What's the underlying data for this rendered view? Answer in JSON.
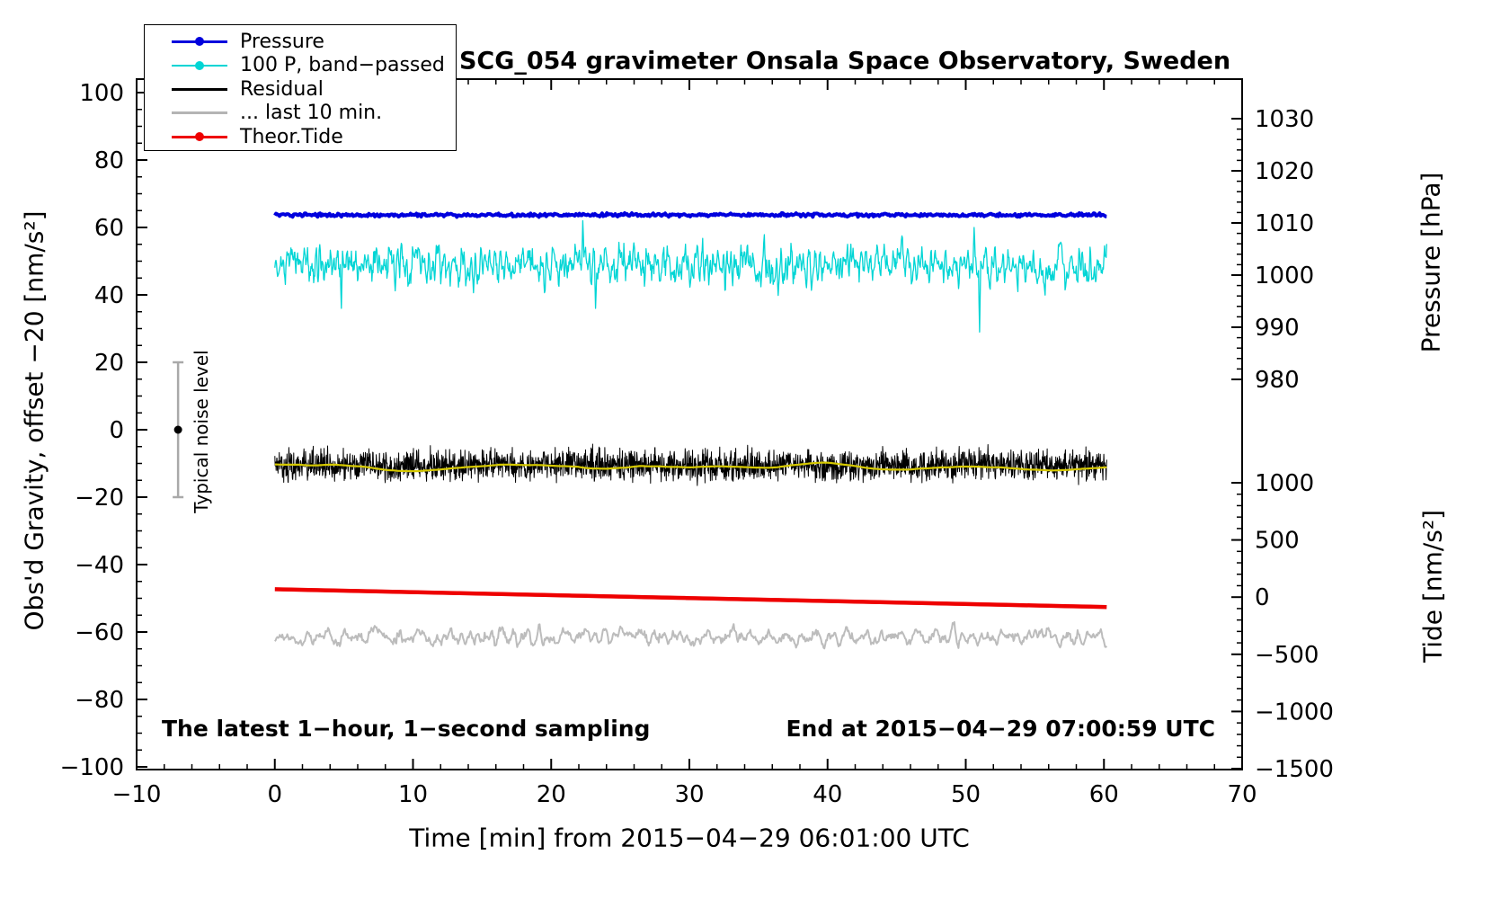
{
  "title": "SCG_054 gravimeter Onsala Space Observatory, Sweden",
  "legend": {
    "items": [
      {
        "label": "Pressure",
        "color": "#0000dd",
        "marker": "dot-line",
        "line_width": 2.5
      },
      {
        "label": "100 P, band−passed",
        "color": "#00d5d5",
        "marker": "dot-line",
        "line_width": 2.5
      },
      {
        "label": "Residual",
        "color": "#000000",
        "marker": "line",
        "line_width": 3.5
      },
      {
        "label": "... last 10 min.",
        "color": "#b4b4b4",
        "marker": "line",
        "line_width": 3
      },
      {
        "label": "Theor.Tide",
        "color": "#ee0000",
        "marker": "dot-line",
        "line_width": 2.5
      }
    ]
  },
  "annotations": {
    "noise_label": "Typical noise level",
    "sampling_note": "The latest 1−hour, 1−second sampling",
    "end_note": "End at 2015−04−29 07:00:59 UTC"
  },
  "axes": {
    "x": {
      "label": "Time [min] from 2015−04−29 06:01:00 UTC",
      "min": -10,
      "max": 70,
      "major_ticks": [
        -10,
        0,
        10,
        20,
        30,
        40,
        50,
        60,
        70
      ],
      "minor_step": 2
    },
    "y_left": {
      "label": "Obs'd Gravity, offset −20 [nm/s²]",
      "min": -100,
      "max": 100,
      "major_ticks": [
        -100,
        -80,
        -60,
        -40,
        -20,
        0,
        20,
        40,
        60,
        80,
        100
      ],
      "minor_step": 5
    },
    "y_right_pressure": {
      "label": "Pressure [hPa]",
      "ticks": [
        1030,
        1020,
        1010,
        1000,
        990,
        980
      ],
      "minor_step": 2
    },
    "y_right_tide": {
      "label": "Tide [nm/s²]",
      "ticks": [
        1000,
        500,
        0,
        -500,
        -1000,
        -1500
      ],
      "minor_step": 100
    }
  },
  "chart_data": {
    "type": "line",
    "x_unit": "min",
    "x_range": [
      0,
      60.2
    ],
    "grid": false,
    "legend_position": "top-left",
    "series": [
      {
        "name": "Pressure",
        "color": "#0000dd",
        "width": 4,
        "axis": "left",
        "mean": 63.7,
        "noise_sigma": 0.25,
        "approx_pressure_hPa": 1011
      },
      {
        "name": "100 P, band−passed",
        "color": "#00d5d5",
        "width": 1.3,
        "axis": "left",
        "mean": 49,
        "noise_sigma": 3.2,
        "anomalies": [
          {
            "min": 4.8,
            "value": 36
          },
          {
            "min": 22.3,
            "value": 62
          },
          {
            "min": 23.2,
            "value": 36
          },
          {
            "min": 50.6,
            "value": 60
          },
          {
            "min": 51.0,
            "value": 29
          }
        ]
      },
      {
        "name": "Residual",
        "color": "#000000",
        "width": 1,
        "axis": "left",
        "mean": -10.5,
        "noise_sigma": 2.2
      },
      {
        "name": "Residual smoothed",
        "color": "#d6c900",
        "width": 2.2,
        "axis": "left",
        "mean": -11,
        "noise_sigma": 0.8
      },
      {
        "name": "... last 10 min.",
        "color": "#bcbcbc",
        "width": 2,
        "axis": "left",
        "mean": -61.5,
        "noise_sigma": 1.7
      },
      {
        "name": "Theor.Tide",
        "color": "#ee0000",
        "width": 4.5,
        "axis": "left",
        "start": -47.3,
        "end": -52.6,
        "shape": "linear",
        "tide_units_start": 60,
        "tide_units_end": -120
      }
    ],
    "noise_bar": {
      "x": -7,
      "center": 0,
      "half_range": 20
    }
  }
}
